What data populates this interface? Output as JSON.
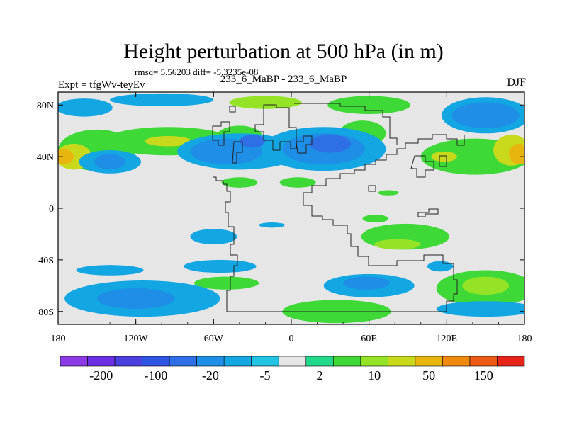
{
  "header": {
    "title": "Height perturbation at 500 hPa (in m)",
    "stats": "rmsd= 5.56203 diff= -5.3235e-08",
    "expt": "Expt = tfgWv-teyEv",
    "center_label": "233_6_MaBP - 233_6_MaBP",
    "season": "DJF"
  },
  "chart_data": {
    "type": "heatmap",
    "title": "Height perturbation at 500 hPa (in m)",
    "subtitle": "233_6_MaBP - 233_6_MaBP",
    "xlabel": "",
    "ylabel": "",
    "xlim": [
      -180,
      180
    ],
    "ylim": [
      -90,
      90
    ],
    "x_ticks": [
      {
        "value": -180,
        "label": "180"
      },
      {
        "value": -120,
        "label": "120W"
      },
      {
        "value": -60,
        "label": "60W"
      },
      {
        "value": 0,
        "label": "0"
      },
      {
        "value": 60,
        "label": "60E"
      },
      {
        "value": 120,
        "label": "120E"
      },
      {
        "value": 180,
        "label": "180"
      }
    ],
    "y_ticks": [
      {
        "value": 80,
        "label": "80N"
      },
      {
        "value": 40,
        "label": "40N"
      },
      {
        "value": 0,
        "label": "0"
      },
      {
        "value": -40,
        "label": "40S"
      },
      {
        "value": -80,
        "label": "80S"
      }
    ],
    "background_color": "#e6e6e6",
    "colorbar": {
      "levels": [
        "",
        "-200",
        "",
        "-100",
        "",
        "-20",
        "",
        "-5",
        "",
        "2",
        "",
        "10",
        "",
        "50",
        "",
        "150",
        ""
      ],
      "colors": [
        "#8b3ae4",
        "#6a2ee3",
        "#4b3fe0",
        "#2e55e3",
        "#2f6fe6",
        "#1f8ee6",
        "#12a6e3",
        "#22c3e3",
        "#e6e6e6",
        "#22d88a",
        "#3ed837",
        "#94e327",
        "#c8d91c",
        "#e8b50f",
        "#f08a0c",
        "#ec5a14",
        "#e82418"
      ]
    },
    "regions": [
      {
        "lon": -160,
        "lat": 78,
        "rx": 22,
        "ry": 7,
        "level": -8
      },
      {
        "lon": -100,
        "lat": 84,
        "rx": 40,
        "ry": 5,
        "level": -8
      },
      {
        "lon": -100,
        "lat": 82,
        "rx": 22,
        "ry": 3,
        "level": -10
      },
      {
        "lon": -20,
        "lat": 82,
        "rx": 28,
        "ry": 5,
        "level": 10
      },
      {
        "lon": 60,
        "lat": 80,
        "rx": 32,
        "ry": 7,
        "level": 8
      },
      {
        "lon": 150,
        "lat": 72,
        "rx": 34,
        "ry": 14,
        "level": -8
      },
      {
        "lon": 150,
        "lat": 72,
        "rx": 26,
        "ry": 10,
        "level": -15
      },
      {
        "lon": -95,
        "lat": 52,
        "rx": 50,
        "ry": 11,
        "level": 8
      },
      {
        "lon": -95,
        "lat": 52,
        "rx": 18,
        "ry": 4,
        "level": 20
      },
      {
        "lon": -40,
        "lat": 55,
        "rx": 18,
        "ry": 9,
        "level": 8
      },
      {
        "lon": 55,
        "lat": 58,
        "rx": 18,
        "ry": 10,
        "level": 8
      },
      {
        "lon": -150,
        "lat": 45,
        "rx": 30,
        "ry": 16,
        "level": 8
      },
      {
        "lon": -168,
        "lat": 40,
        "rx": 14,
        "ry": 10,
        "level": 20
      },
      {
        "lon": -176,
        "lat": 40,
        "rx": 8,
        "ry": 6,
        "level": 60
      },
      {
        "lon": -140,
        "lat": 36,
        "rx": 24,
        "ry": 9,
        "level": -8
      },
      {
        "lon": -140,
        "lat": 36,
        "rx": 12,
        "ry": 6,
        "level": -15
      },
      {
        "lon": -40,
        "lat": 44,
        "rx": 48,
        "ry": 14,
        "level": -8
      },
      {
        "lon": -50,
        "lat": 44,
        "rx": 28,
        "ry": 10,
        "level": -15
      },
      {
        "lon": -30,
        "lat": 52,
        "rx": 10,
        "ry": 5,
        "level": -25
      },
      {
        "lon": 25,
        "lat": 46,
        "rx": 48,
        "ry": 17,
        "level": -8
      },
      {
        "lon": 25,
        "lat": 46,
        "rx": 32,
        "ry": 12,
        "level": -15
      },
      {
        "lon": 30,
        "lat": 50,
        "rx": 16,
        "ry": 7,
        "level": -25
      },
      {
        "lon": 142,
        "lat": 40,
        "rx": 42,
        "ry": 14,
        "level": 8
      },
      {
        "lon": 170,
        "lat": 45,
        "rx": 14,
        "ry": 12,
        "level": 20
      },
      {
        "lon": 176,
        "lat": 42,
        "rx": 8,
        "ry": 8,
        "level": 60
      },
      {
        "lon": 118,
        "lat": 40,
        "rx": 10,
        "ry": 4,
        "level": 20
      },
      {
        "lon": -40,
        "lat": 20,
        "rx": 14,
        "ry": 4,
        "level": 8
      },
      {
        "lon": 5,
        "lat": 20,
        "rx": 14,
        "ry": 4,
        "level": 8
      },
      {
        "lon": 75,
        "lat": 12,
        "rx": 8,
        "ry": 2,
        "level": 8
      },
      {
        "lon": -60,
        "lat": -22,
        "rx": 18,
        "ry": 6,
        "level": -8
      },
      {
        "lon": -15,
        "lat": -13,
        "rx": 10,
        "ry": 2,
        "level": -8
      },
      {
        "lon": 88,
        "lat": -22,
        "rx": 34,
        "ry": 10,
        "level": 8
      },
      {
        "lon": 82,
        "lat": -28,
        "rx": 18,
        "ry": 4,
        "level": 12
      },
      {
        "lon": 65,
        "lat": -8,
        "rx": 10,
        "ry": 3,
        "level": 8
      },
      {
        "lon": 115,
        "lat": -45,
        "rx": 10,
        "ry": 4,
        "level": -8
      },
      {
        "lon": -140,
        "lat": -48,
        "rx": 26,
        "ry": 4,
        "level": -8
      },
      {
        "lon": -55,
        "lat": -45,
        "rx": 28,
        "ry": 5,
        "level": -8
      },
      {
        "lon": -50,
        "lat": -58,
        "rx": 25,
        "ry": 5,
        "level": 8
      },
      {
        "lon": -115,
        "lat": -70,
        "rx": 60,
        "ry": 14,
        "level": -8
      },
      {
        "lon": -120,
        "lat": -70,
        "rx": 30,
        "ry": 8,
        "level": -15
      },
      {
        "lon": 60,
        "lat": -60,
        "rx": 35,
        "ry": 9,
        "level": -8
      },
      {
        "lon": 58,
        "lat": -58,
        "rx": 18,
        "ry": 5,
        "level": -15
      },
      {
        "lon": 35,
        "lat": -80,
        "rx": 42,
        "ry": 9,
        "level": 8
      },
      {
        "lon": 150,
        "lat": -62,
        "rx": 38,
        "ry": 14,
        "level": 8
      },
      {
        "lon": 150,
        "lat": -60,
        "rx": 18,
        "ry": 7,
        "level": 12
      },
      {
        "lon": 150,
        "lat": -78,
        "rx": 38,
        "ry": 6,
        "level": -8
      }
    ]
  }
}
